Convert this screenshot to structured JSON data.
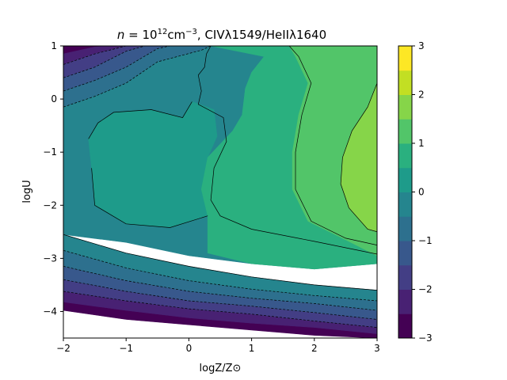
{
  "chart_data": {
    "type": "contour",
    "title": "n = 10^12 cm^-3, CIVλ1549/HeIIλ1640",
    "title_parts": {
      "n": "n",
      "eq": " = 10",
      "exp12": "12",
      "unit": "cm",
      "expm3": "−3",
      "rest": ", CIVλ1549/HeIIλ1640"
    },
    "xlabel": "logZ/Z⊙",
    "ylabel": "logU",
    "xlim": [
      -2,
      3
    ],
    "ylim": [
      -4.5,
      1
    ],
    "x_ticks": [
      -2,
      -1,
      0,
      1,
      2,
      3
    ],
    "x_tick_labels": [
      "−2",
      "−1",
      "0",
      "1",
      "2",
      "3"
    ],
    "y_ticks": [
      -4,
      -3,
      -2,
      -1,
      0,
      1
    ],
    "y_tick_labels": [
      "−4",
      "−3",
      "−2",
      "−1",
      "0",
      "1"
    ],
    "colorbar": {
      "range": [
        -3,
        3
      ],
      "ticks": [
        -3,
        -2,
        -1,
        0,
        1,
        2,
        3
      ],
      "tick_labels": [
        "−3",
        "−2",
        "−1",
        "0",
        "1",
        "2",
        "3"
      ],
      "levels": [
        -3,
        -2.5,
        -2,
        -1.5,
        -1,
        -0.5,
        0,
        0.5,
        1,
        1.5,
        2,
        2.5,
        3
      ],
      "colors": [
        "#440154",
        "#482173",
        "#433e85",
        "#38588c",
        "#2d708e",
        "#25858e",
        "#1e9b8a",
        "#2ab07f",
        "#52c569",
        "#86d549",
        "#c2df23",
        "#fde725"
      ]
    },
    "contour_regions": [
      {
        "level_index": 0,
        "polygon": [
          [
            -2,
            -3.82
          ],
          [
            -1,
            -3.98
          ],
          [
            0,
            -4.12
          ],
          [
            1,
            -4.22
          ],
          [
            2,
            -4.3
          ],
          [
            3,
            -4.42
          ],
          [
            3,
            -4.5
          ],
          [
            2,
            -4.45
          ],
          [
            1,
            -4.35
          ],
          [
            0,
            -4.25
          ],
          [
            -1,
            -4.15
          ],
          [
            -2,
            -3.98
          ]
        ]
      },
      {
        "level_index": 0,
        "polygon": [
          [
            -2,
            0.85
          ],
          [
            -1.5,
            0.98
          ],
          [
            -1.2,
            1
          ],
          [
            -2,
            1
          ]
        ]
      },
      {
        "level_index": 1,
        "polygon": [
          [
            -2,
            -3.62
          ],
          [
            -1,
            -3.8
          ],
          [
            0,
            -3.95
          ],
          [
            1,
            -4.05
          ],
          [
            2,
            -4.18
          ],
          [
            3,
            -4.3
          ],
          [
            3,
            -4.42
          ],
          [
            2,
            -4.3
          ],
          [
            1,
            -4.22
          ],
          [
            0,
            -4.12
          ],
          [
            -1,
            -3.98
          ],
          [
            -2,
            -3.82
          ]
        ]
      },
      {
        "level_index": 1,
        "polygon": [
          [
            -2,
            0.65
          ],
          [
            -1.5,
            0.85
          ],
          [
            -1,
            1
          ],
          [
            -1.2,
            1
          ],
          [
            -1.5,
            0.98
          ],
          [
            -2,
            0.85
          ]
        ]
      },
      {
        "level_index": 2,
        "polygon": [
          [
            -2,
            -3.4
          ],
          [
            -1,
            -3.62
          ],
          [
            0,
            -3.8
          ],
          [
            1,
            -3.9
          ],
          [
            2,
            -4.02
          ],
          [
            3,
            -4.15
          ],
          [
            3,
            -4.3
          ],
          [
            2,
            -4.18
          ],
          [
            1,
            -4.05
          ],
          [
            0,
            -3.95
          ],
          [
            -1,
            -3.8
          ],
          [
            -2,
            -3.62
          ]
        ]
      },
      {
        "level_index": 2,
        "polygon": [
          [
            -2,
            0.4
          ],
          [
            -1.5,
            0.6
          ],
          [
            -1,
            0.9
          ],
          [
            -0.7,
            1
          ],
          [
            -1,
            1
          ],
          [
            -1.5,
            0.85
          ],
          [
            -2,
            0.65
          ]
        ]
      },
      {
        "level_index": 3,
        "polygon": [
          [
            -2,
            -3.15
          ],
          [
            -1,
            -3.42
          ],
          [
            0,
            -3.62
          ],
          [
            1,
            -3.75
          ],
          [
            2,
            -3.85
          ],
          [
            3,
            -3.98
          ],
          [
            3,
            -4.15
          ],
          [
            2,
            -4.02
          ],
          [
            1,
            -3.9
          ],
          [
            0,
            -3.8
          ],
          [
            -1,
            -3.62
          ],
          [
            -2,
            -3.4
          ]
        ]
      },
      {
        "level_index": 3,
        "polygon": [
          [
            -2,
            0.15
          ],
          [
            -1.5,
            0.35
          ],
          [
            -1,
            0.6
          ],
          [
            -0.5,
            0.95
          ],
          [
            -0.3,
            1
          ],
          [
            -0.7,
            1
          ],
          [
            -1,
            0.9
          ],
          [
            -1.5,
            0.6
          ],
          [
            -2,
            0.4
          ]
        ]
      },
      {
        "level_index": 4,
        "polygon": [
          [
            -2,
            -2.85
          ],
          [
            -1,
            -3.18
          ],
          [
            0,
            -3.42
          ],
          [
            1,
            -3.58
          ],
          [
            2,
            -3.7
          ],
          [
            3,
            -3.8
          ],
          [
            3,
            -3.98
          ],
          [
            2,
            -3.85
          ],
          [
            1,
            -3.75
          ],
          [
            0,
            -3.62
          ],
          [
            -1,
            -3.42
          ],
          [
            -2,
            -3.15
          ]
        ]
      },
      {
        "level_index": 4,
        "polygon": [
          [
            -2,
            -0.15
          ],
          [
            -1.5,
            0.05
          ],
          [
            -1,
            0.3
          ],
          [
            -0.5,
            0.7
          ],
          [
            0.2,
            0.92
          ],
          [
            0.35,
            1
          ],
          [
            -0.3,
            1
          ],
          [
            -0.5,
            0.95
          ],
          [
            -1,
            0.6
          ],
          [
            -1.5,
            0.35
          ],
          [
            -2,
            0.15
          ]
        ]
      },
      {
        "level_index": 5,
        "polygon": [
          [
            -2,
            -2.55
          ],
          [
            -1,
            -2.9
          ],
          [
            0,
            -3.15
          ],
          [
            1,
            -3.35
          ],
          [
            2,
            -3.5
          ],
          [
            3,
            -3.6
          ],
          [
            3,
            -3.8
          ],
          [
            2,
            -3.7
          ],
          [
            1,
            -3.58
          ],
          [
            0,
            -3.42
          ],
          [
            -1,
            -3.18
          ],
          [
            -2,
            -2.85
          ]
        ]
      },
      {
        "level_index": 5,
        "polygon": [
          [
            -2,
            -2.55
          ],
          [
            -2,
            -0.15
          ],
          [
            -1.5,
            0.05
          ],
          [
            -1,
            0.3
          ],
          [
            -0.5,
            0.7
          ],
          [
            0.2,
            0.92
          ],
          [
            0.35,
            1
          ],
          [
            1.6,
            1
          ],
          [
            1.2,
            0.8
          ],
          [
            1.0,
            0.5
          ],
          [
            0.9,
            0.2
          ],
          [
            0.85,
            -0.3
          ],
          [
            0.7,
            -0.6
          ],
          [
            0.3,
            -1.1
          ],
          [
            0.2,
            -1.7
          ],
          [
            0.3,
            -2.2
          ],
          [
            0.9,
            -2.55
          ],
          [
            2.0,
            -2.75
          ],
          [
            3,
            -2.95
          ],
          [
            3,
            -3.1
          ],
          [
            2,
            -3.2
          ],
          [
            1,
            -3.1
          ],
          [
            0,
            -2.95
          ],
          [
            -1,
            -2.7
          ]
        ]
      },
      {
        "level_index": 6,
        "polygon": [
          [
            -1.6,
            -0.75
          ],
          [
            -1.45,
            -0.45
          ],
          [
            -1.2,
            -0.25
          ],
          [
            -0.6,
            -0.2
          ],
          [
            -0.1,
            -0.35
          ],
          [
            0.05,
            -0.05
          ],
          [
            0.4,
            -0.2
          ],
          [
            0.45,
            -0.7
          ],
          [
            0.3,
            -1.1
          ],
          [
            0.2,
            -1.7
          ],
          [
            0.3,
            -2.2
          ],
          [
            -0.3,
            -2.42
          ],
          [
            -1.0,
            -2.35
          ],
          [
            -1.5,
            -2.0
          ],
          [
            -1.55,
            -1.3
          ]
        ]
      },
      {
        "level_index": 7,
        "polygon": [
          [
            0.35,
            1
          ],
          [
            1.6,
            1
          ],
          [
            1.7,
            0.8
          ],
          [
            1.9,
            0.3
          ],
          [
            1.75,
            -0.3
          ],
          [
            1.65,
            -1.0
          ],
          [
            1.65,
            -1.7
          ],
          [
            1.9,
            -2.3
          ],
          [
            2.5,
            -2.65
          ],
          [
            3,
            -2.95
          ],
          [
            3,
            -3.1
          ],
          [
            2,
            -3.2
          ],
          [
            1,
            -3.1
          ],
          [
            0.3,
            -2.9
          ],
          [
            0.3,
            -2.2
          ],
          [
            0.2,
            -1.7
          ],
          [
            0.3,
            -1.1
          ],
          [
            0.7,
            -0.6
          ],
          [
            0.85,
            -0.3
          ],
          [
            0.9,
            0.2
          ],
          [
            1.0,
            0.5
          ],
          [
            1.2,
            0.8
          ]
        ]
      },
      {
        "level_index": 8,
        "polygon": [
          [
            1.6,
            1
          ],
          [
            3,
            1
          ],
          [
            3,
            -2.95
          ],
          [
            2.5,
            -2.65
          ],
          [
            1.9,
            -2.3
          ],
          [
            1.65,
            -1.7
          ],
          [
            1.65,
            -1.0
          ],
          [
            1.75,
            -0.3
          ],
          [
            1.9,
            0.3
          ],
          [
            1.7,
            0.8
          ]
        ]
      },
      {
        "level_index": 9,
        "polygon": [
          [
            3,
            0.3
          ],
          [
            2.85,
            -0.15
          ],
          [
            2.6,
            -0.6
          ],
          [
            2.45,
            -1.1
          ],
          [
            2.42,
            -1.6
          ],
          [
            2.55,
            -2.05
          ],
          [
            2.85,
            -2.45
          ],
          [
            3,
            -2.5
          ]
        ]
      }
    ],
    "contour_lines": [
      {
        "style": "solid",
        "points": [
          [
            0.35,
            1
          ],
          [
            0.28,
            0.85
          ],
          [
            0.25,
            0.6
          ],
          [
            0.15,
            0.45
          ],
          [
            0.2,
            0.15
          ],
          [
            0.15,
            -0.1
          ],
          [
            0.55,
            -0.35
          ],
          [
            0.6,
            -0.8
          ],
          [
            0.4,
            -1.3
          ],
          [
            0.35,
            -1.9
          ],
          [
            0.5,
            -2.2
          ],
          [
            1.0,
            -2.45
          ],
          [
            2.0,
            -2.68
          ],
          [
            3,
            -2.92
          ]
        ]
      },
      {
        "style": "solid",
        "points": [
          [
            1.6,
            1
          ],
          [
            1.75,
            0.8
          ],
          [
            1.95,
            0.3
          ],
          [
            1.8,
            -0.3
          ],
          [
            1.7,
            -1.0
          ],
          [
            1.7,
            -1.7
          ],
          [
            1.95,
            -2.3
          ],
          [
            2.5,
            -2.62
          ],
          [
            3,
            -2.75
          ]
        ]
      },
      {
        "style": "solid",
        "points": [
          [
            3,
            0.3
          ],
          [
            2.85,
            -0.15
          ],
          [
            2.6,
            -0.6
          ],
          [
            2.45,
            -1.1
          ],
          [
            2.42,
            -1.6
          ],
          [
            2.55,
            -2.05
          ],
          [
            2.85,
            -2.45
          ],
          [
            3,
            -2.5
          ]
        ]
      },
      {
        "style": "solid",
        "points": [
          [
            -1.6,
            -0.75
          ],
          [
            -1.45,
            -0.45
          ],
          [
            -1.2,
            -0.25
          ],
          [
            -0.6,
            -0.2
          ],
          [
            -0.1,
            -0.35
          ],
          [
            0.05,
            -0.05
          ]
        ]
      },
      {
        "style": "solid",
        "points": [
          [
            -1.55,
            -1.3
          ],
          [
            -1.5,
            -2.0
          ],
          [
            -1.0,
            -2.35
          ],
          [
            -0.3,
            -2.42
          ],
          [
            0.3,
            -2.2
          ]
        ]
      },
      {
        "style": "solid",
        "points": [
          [
            -2,
            -2.55
          ],
          [
            -1,
            -2.9
          ],
          [
            0,
            -3.15
          ],
          [
            1,
            -3.35
          ],
          [
            2,
            -3.5
          ],
          [
            3,
            -3.6
          ]
        ]
      },
      {
        "style": "dashed",
        "points": [
          [
            -2,
            -2.85
          ],
          [
            -1,
            -3.18
          ],
          [
            0,
            -3.42
          ],
          [
            1,
            -3.58
          ],
          [
            2,
            -3.7
          ],
          [
            3,
            -3.8
          ]
        ]
      },
      {
        "style": "dashed",
        "points": [
          [
            -2,
            -3.15
          ],
          [
            -1,
            -3.42
          ],
          [
            0,
            -3.62
          ],
          [
            1,
            -3.75
          ],
          [
            2,
            -3.85
          ],
          [
            3,
            -3.98
          ]
        ]
      },
      {
        "style": "dashed",
        "points": [
          [
            -2,
            -3.4
          ],
          [
            -1,
            -3.62
          ],
          [
            0,
            -3.8
          ],
          [
            1,
            -3.9
          ],
          [
            2,
            -4.02
          ],
          [
            3,
            -4.15
          ]
        ]
      },
      {
        "style": "dashed",
        "points": [
          [
            -2,
            -3.62
          ],
          [
            -1,
            -3.8
          ],
          [
            0,
            -3.95
          ],
          [
            1,
            -4.05
          ],
          [
            2,
            -4.18
          ],
          [
            3,
            -4.3
          ]
        ]
      },
      {
        "style": "dashed",
        "points": [
          [
            -2,
            -0.15
          ],
          [
            -1.5,
            0.05
          ],
          [
            -1,
            0.3
          ],
          [
            -0.5,
            0.7
          ],
          [
            0.2,
            0.92
          ],
          [
            0.35,
            1
          ]
        ]
      },
      {
        "style": "dashed",
        "points": [
          [
            -2,
            0.15
          ],
          [
            -1.5,
            0.35
          ],
          [
            -1,
            0.6
          ],
          [
            -0.5,
            0.95
          ],
          [
            -0.3,
            1
          ]
        ]
      },
      {
        "style": "dashed",
        "points": [
          [
            -2,
            0.4
          ],
          [
            -1.5,
            0.6
          ],
          [
            -1,
            0.9
          ],
          [
            -0.7,
            1
          ]
        ]
      },
      {
        "style": "dashed",
        "points": [
          [
            -2,
            0.65
          ],
          [
            -1.5,
            0.85
          ],
          [
            -1,
            1
          ]
        ]
      }
    ]
  }
}
